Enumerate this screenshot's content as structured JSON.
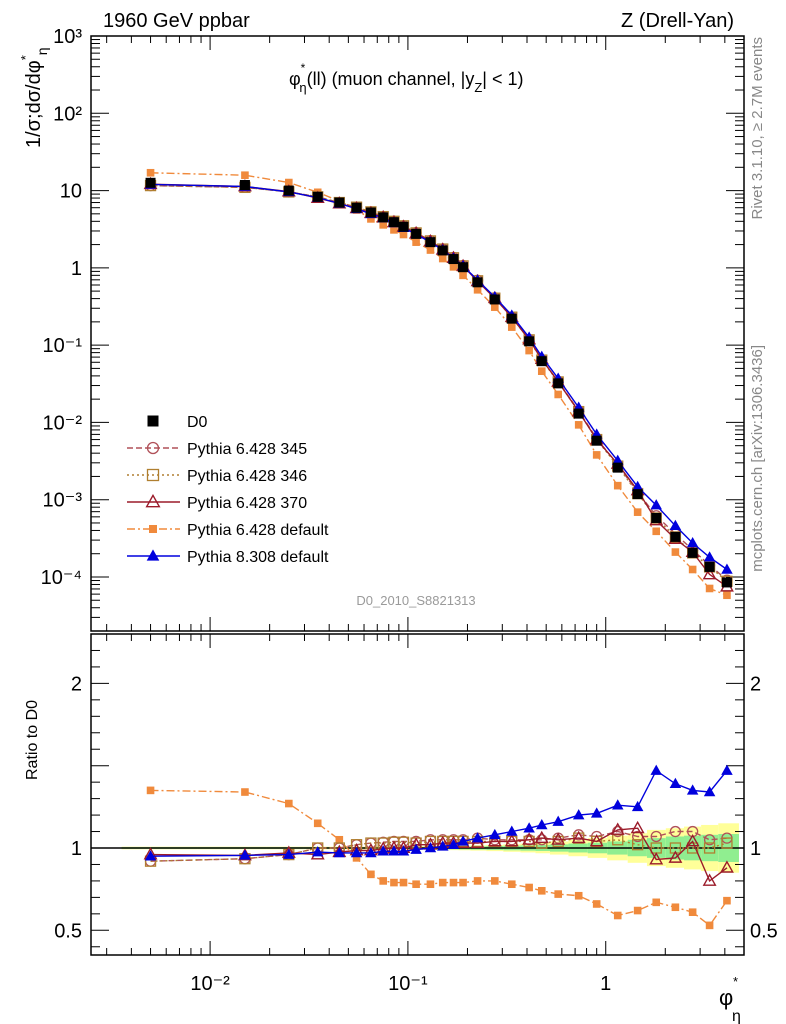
{
  "header": {
    "left": "1960 GeV ppbar",
    "right": "Z (Drell-Yan)"
  },
  "side_texts": {
    "rivet": "Rivet 3.1.10, ≥ 2.7M events",
    "mcplots": "mcplots.cern.ch [arXiv:1306.3436]"
  },
  "analysis_id": "D0_2010_S8821313",
  "colors": {
    "data": "#000000",
    "p345": "#b05058",
    "p346": "#b07f30",
    "p370": "#9b1b2a",
    "p6def": "#f08a3c",
    "p8": "#0000dd",
    "band_inner": "#90ee90",
    "band_outer": "#ffff99"
  },
  "chart_data": [
    {
      "type": "scatter",
      "panel": "main",
      "title": "φ*η(ll) (muon channel, |yZ| < 1)",
      "title_parts": {
        "phi": "φ",
        "star": "*",
        "eta": "η",
        "mid": "(ll) (muon channel, |y",
        "z": "Z",
        "end": "| < 1)"
      },
      "ylabel": "1/σ;dσ/dφ*η",
      "ylabel_parts": {
        "main": "1/σ;dσ/dφ",
        "star": "*",
        "eta": "η"
      },
      "xlabel": "φ*η",
      "xlabel_parts": {
        "phi": "φ",
        "star": "*",
        "eta": "η"
      },
      "xscale": "log",
      "yscale": "log",
      "xlim": [
        0.0025,
        5
      ],
      "ylim": [
        2e-05,
        1000
      ],
      "y_tick_labels": [
        "10⁻⁴",
        "10⁻³",
        "10⁻²",
        "10⁻¹",
        "1",
        "10",
        "10²",
        "10³"
      ],
      "legend_position": "bottom-left",
      "x": [
        0.005,
        0.015,
        0.025,
        0.035,
        0.045,
        0.055,
        0.065,
        0.075,
        0.085,
        0.095,
        0.11,
        0.13,
        0.15,
        0.17,
        0.19,
        0.225,
        0.275,
        0.335,
        0.41,
        0.475,
        0.575,
        0.73,
        0.9,
        1.15,
        1.45,
        1.8,
        2.25,
        2.75,
        3.35,
        4.1
      ],
      "series": [
        {
          "name": "D0",
          "key": "data",
          "marker": "square",
          "values": [
            12.6,
            11.8,
            10.0,
            8.3,
            7.0,
            6.0,
            5.2,
            4.5,
            3.9,
            3.4,
            2.75,
            2.15,
            1.68,
            1.3,
            1.02,
            0.65,
            0.39,
            0.22,
            0.112,
            0.062,
            0.032,
            0.013,
            0.0058,
            0.0026,
            0.00118,
            0.00058,
            0.00033,
            0.000205,
            0.000135,
            8.5e-05
          ]
        },
        {
          "name": "Pythia 6.428 345",
          "key": "p345",
          "marker": "circle-open",
          "dash": "6,3",
          "values": [
            11.6,
            11.0,
            9.6,
            8.3,
            7.0,
            6.1,
            5.3,
            4.6,
            4.0,
            3.5,
            2.85,
            2.25,
            1.76,
            1.36,
            1.07,
            0.69,
            0.41,
            0.23,
            0.118,
            0.065,
            0.034,
            0.0141,
            0.0062,
            0.00282,
            0.00125,
            0.00062,
            0.00036,
            0.000225,
            0.000142,
            9.1e-05
          ]
        },
        {
          "name": "Pythia 6.428 346",
          "key": "p346",
          "marker": "square-open",
          "dash": "2,3",
          "values": [
            11.6,
            11.0,
            9.6,
            8.3,
            7.0,
            6.1,
            5.3,
            4.6,
            4.0,
            3.5,
            2.83,
            2.23,
            1.75,
            1.35,
            1.06,
            0.68,
            0.405,
            0.23,
            0.117,
            0.064,
            0.0334,
            0.0138,
            0.006,
            0.00272,
            0.0012,
            0.00058,
            0.00033,
            0.000205,
            0.000135,
            8.8e-05
          ]
        },
        {
          "name": "Pythia 6.428 370",
          "key": "p370",
          "marker": "triangle-open",
          "dash": "",
          "values": [
            12.1,
            11.3,
            9.7,
            8.0,
            6.8,
            5.9,
            5.1,
            4.5,
            3.9,
            3.4,
            2.8,
            2.2,
            1.72,
            1.34,
            1.05,
            0.67,
            0.405,
            0.23,
            0.118,
            0.066,
            0.0335,
            0.0138,
            0.006,
            0.0029,
            0.00132,
            0.00054,
            0.00031,
            0.00021,
            0.000108,
            7.5e-05
          ]
        },
        {
          "name": "Pythia 6.428 default",
          "key": "p6def",
          "marker": "square",
          "dash": "8,3,2,3",
          "values": [
            17.0,
            15.8,
            12.7,
            9.5,
            7.3,
            5.6,
            4.3,
            3.6,
            3.1,
            2.7,
            2.15,
            1.7,
            1.32,
            1.03,
            0.8,
            0.52,
            0.31,
            0.171,
            0.085,
            0.046,
            0.023,
            0.0093,
            0.0038,
            0.00152,
            0.00069,
            0.00039,
            0.00021,
            0.000125,
            7.1e-05,
            5.8e-05
          ]
        },
        {
          "name": "Pythia 8.308 default",
          "key": "p8",
          "marker": "triangle",
          "dash": "",
          "values": [
            12.0,
            11.3,
            9.6,
            8.1,
            6.8,
            5.8,
            5.0,
            4.4,
            3.8,
            3.3,
            2.72,
            2.15,
            1.7,
            1.33,
            1.06,
            0.69,
            0.42,
            0.243,
            0.126,
            0.071,
            0.037,
            0.0156,
            0.007,
            0.0032,
            0.00147,
            0.00085,
            0.00046,
            0.000275,
            0.00018,
            0.000125
          ]
        }
      ]
    },
    {
      "type": "scatter",
      "panel": "ratio",
      "ylabel": "Ratio to D0",
      "xscale": "log",
      "yscale": "linear",
      "xlim": [
        0.0025,
        5
      ],
      "ylim": [
        0.35,
        2.3
      ],
      "x_tick_labels": [
        "10⁻²",
        "10⁻¹",
        "1"
      ],
      "y_tick_labels": [
        "0.5",
        "1",
        "2"
      ],
      "x": [
        0.005,
        0.015,
        0.025,
        0.035,
        0.045,
        0.055,
        0.065,
        0.075,
        0.085,
        0.095,
        0.11,
        0.13,
        0.15,
        0.17,
        0.19,
        0.225,
        0.275,
        0.335,
        0.41,
        0.475,
        0.575,
        0.73,
        0.9,
        1.15,
        1.45,
        1.8,
        2.25,
        2.75,
        3.35,
        4.1
      ],
      "data_band": {
        "inner": [
          0.005,
          0.005,
          0.005,
          0.005,
          0.005,
          0.005,
          0.005,
          0.006,
          0.006,
          0.006,
          0.007,
          0.007,
          0.008,
          0.008,
          0.009,
          0.01,
          0.012,
          0.014,
          0.016,
          0.018,
          0.022,
          0.027,
          0.032,
          0.04,
          0.05,
          0.06,
          0.07,
          0.075,
          0.08,
          0.085
        ],
        "outer": [
          0.008,
          0.008,
          0.008,
          0.008,
          0.008,
          0.008,
          0.008,
          0.009,
          0.009,
          0.009,
          0.01,
          0.011,
          0.012,
          0.013,
          0.014,
          0.016,
          0.019,
          0.023,
          0.027,
          0.032,
          0.04,
          0.05,
          0.06,
          0.075,
          0.09,
          0.11,
          0.12,
          0.13,
          0.14,
          0.15
        ]
      },
      "series": [
        {
          "name": "Pythia 6.428 345",
          "key": "p345",
          "marker": "circle-open",
          "dash": "6,3",
          "values": [
            0.92,
            0.935,
            0.96,
            1.0,
            1.0,
            1.02,
            1.03,
            1.035,
            1.04,
            1.04,
            1.04,
            1.05,
            1.05,
            1.05,
            1.05,
            1.06,
            1.05,
            1.05,
            1.05,
            1.05,
            1.06,
            1.08,
            1.07,
            1.1,
            1.07,
            1.07,
            1.1,
            1.1,
            1.05,
            1.06
          ]
        },
        {
          "name": "Pythia 6.428 346",
          "key": "p346",
          "marker": "square-open",
          "dash": "2,3",
          "values": [
            0.92,
            0.935,
            0.96,
            1.0,
            1.0,
            1.02,
            1.03,
            1.03,
            1.035,
            1.035,
            1.03,
            1.04,
            1.04,
            1.04,
            1.04,
            1.04,
            1.04,
            1.04,
            1.04,
            1.03,
            1.04,
            1.06,
            1.04,
            1.05,
            1.02,
            1.0,
            1.0,
            1.0,
            1.0,
            1.03
          ]
        },
        {
          "name": "Pythia 6.428 370",
          "key": "p370",
          "marker": "triangle-open",
          "dash": "",
          "values": [
            0.96,
            0.955,
            0.97,
            0.96,
            0.975,
            0.985,
            0.985,
            0.995,
            1.0,
            1.0,
            1.02,
            1.02,
            1.03,
            1.03,
            1.03,
            1.03,
            1.04,
            1.04,
            1.05,
            1.06,
            1.05,
            1.06,
            1.04,
            1.11,
            1.12,
            0.93,
            0.94,
            1.04,
            0.8,
            0.88
          ]
        },
        {
          "name": "Pythia 6.428 default",
          "key": "p6def",
          "marker": "square",
          "dash": "8,3,2,3",
          "values": [
            1.35,
            1.34,
            1.27,
            1.15,
            1.05,
            0.94,
            0.84,
            0.8,
            0.79,
            0.79,
            0.78,
            0.78,
            0.79,
            0.79,
            0.79,
            0.8,
            0.8,
            0.78,
            0.76,
            0.74,
            0.72,
            0.71,
            0.66,
            0.59,
            0.62,
            0.67,
            0.64,
            0.61,
            0.53,
            0.68
          ]
        },
        {
          "name": "Pythia 8.308 default",
          "key": "p8",
          "marker": "triangle",
          "dash": "",
          "values": [
            0.95,
            0.955,
            0.96,
            0.975,
            0.97,
            0.97,
            0.97,
            0.98,
            0.98,
            0.98,
            0.99,
            1.0,
            1.01,
            1.02,
            1.04,
            1.06,
            1.08,
            1.1,
            1.12,
            1.14,
            1.16,
            1.2,
            1.21,
            1.26,
            1.25,
            1.47,
            1.39,
            1.35,
            1.34,
            1.47
          ]
        }
      ]
    }
  ]
}
